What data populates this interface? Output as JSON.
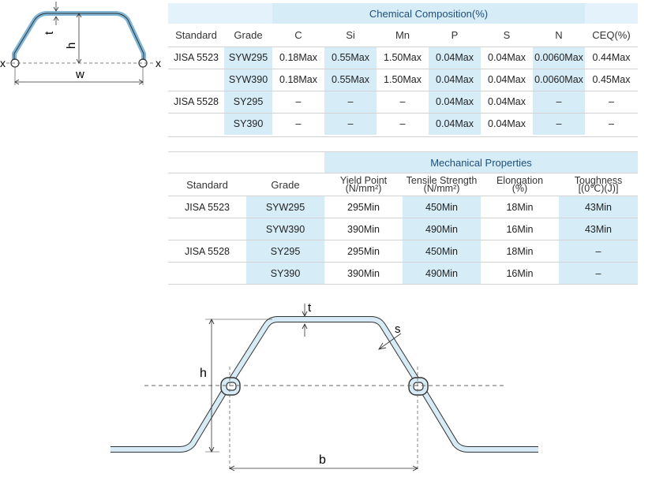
{
  "chemical": {
    "title": "Chemical Composition(%)",
    "headers": [
      "Standard",
      "Grade",
      "C",
      "Si",
      "Mn",
      "P",
      "S",
      "N",
      "CEQ(%)"
    ],
    "rows": [
      [
        "JISA 5523",
        "SYW295",
        "0.18Max",
        "0.55Max",
        "1.50Max",
        "0.04Max",
        "0.04Max",
        "0.0060Max",
        "0.44Max"
      ],
      [
        "",
        "SYW390",
        "0.18Max",
        "0.55Max",
        "1.50Max",
        "0.04Max",
        "0.04Max",
        "0.0060Max",
        "0.45Max"
      ],
      [
        "JISA 5528",
        "SY295",
        "–",
        "–",
        "–",
        "0.04Max",
        "0.04Max",
        "–",
        "–"
      ],
      [
        "",
        "SY390",
        "–",
        "–",
        "–",
        "0.04Max",
        "0.04Max",
        "–",
        "–"
      ]
    ]
  },
  "mechanical": {
    "title": "Mechanical Properties",
    "headers": {
      "standard": "Standard",
      "grade": "Grade",
      "yield_1": "Yield Point",
      "yield_2": "(N/mm²)",
      "tensile_1": "Tensile Strength",
      "tensile_2": "(N/mm²)",
      "elong_1": "Elongation",
      "elong_2": "(%)",
      "tough_1": "Toughness",
      "tough_2": "[(0℃)(J)]"
    },
    "rows": [
      [
        "JISA 5523",
        "SYW295",
        "295Min",
        "450Min",
        "18Min",
        "43Min"
      ],
      [
        "",
        "SYW390",
        "390Min",
        "490Min",
        "16Min",
        "43Min"
      ],
      [
        "JISA 5528",
        "SY295",
        "295Min",
        "450Min",
        "18Min",
        "–"
      ],
      [
        "",
        "SY390",
        "390Min",
        "490Min",
        "16Min",
        "–"
      ]
    ]
  },
  "small_diagram": {
    "t": "t",
    "h": "h",
    "w": "w",
    "x_left": "x",
    "x_right": "x"
  },
  "large_diagram": {
    "t": "t",
    "s": "s",
    "h": "h",
    "b": "b"
  },
  "colors": {
    "highlight": "#d6edf8",
    "title_text": "#1f4e78",
    "profile_fill": "#cfe6f3",
    "profile_stroke": "#333333"
  }
}
